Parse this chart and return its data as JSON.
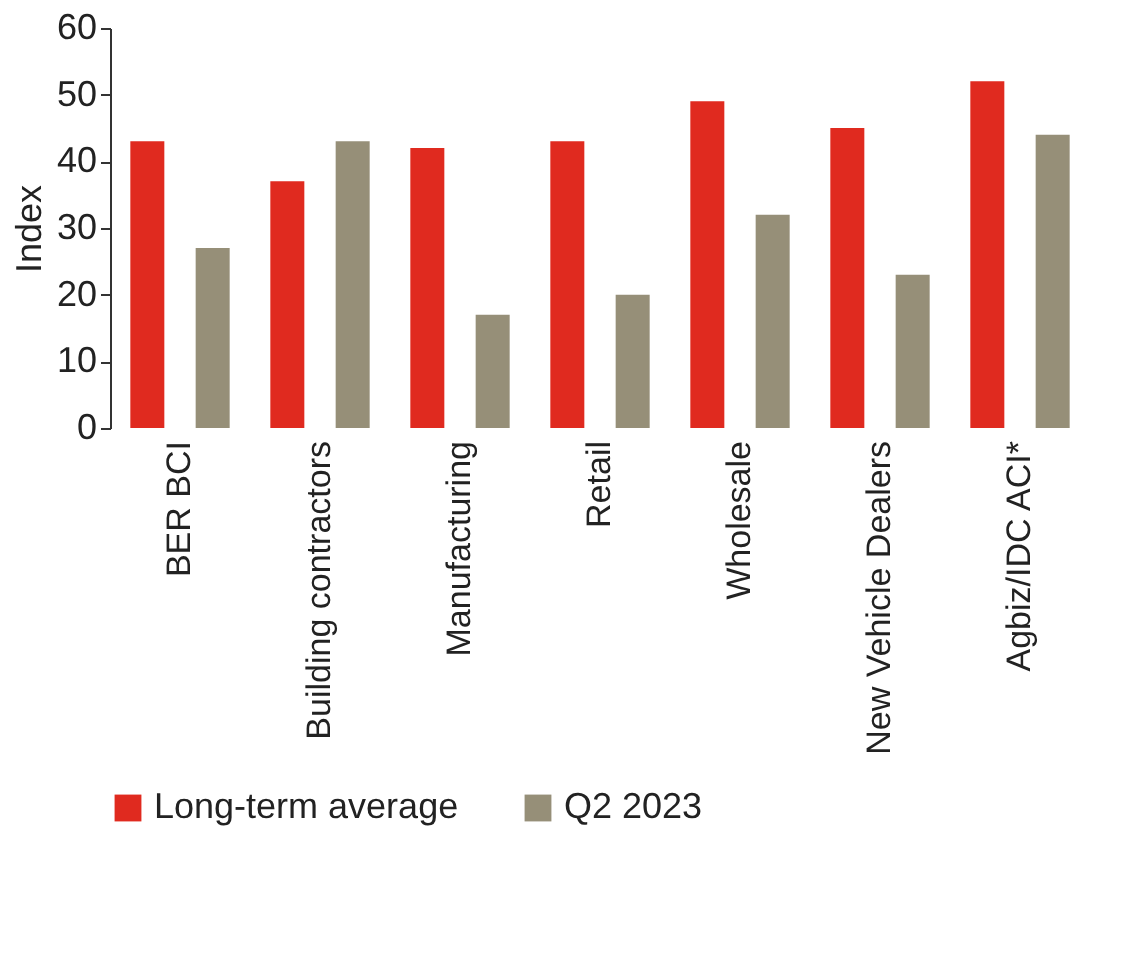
{
  "chart_data": {
    "type": "bar",
    "ylabel": "Index",
    "categories": [
      "BER BCI",
      "Building contractors",
      "Manufacturing",
      "Retail",
      "Wholesale",
      "New Vehicle Dealers",
      "Agbiz/IDC ACI*"
    ],
    "series": [
      {
        "name": "Long-term average",
        "color": "#e02a1f",
        "values": [
          43,
          37,
          42,
          43,
          49,
          45,
          52
        ]
      },
      {
        "name": "Q2 2023",
        "color": "#968f78",
        "values": [
          27,
          43,
          17,
          20,
          32,
          23,
          44
        ]
      }
    ],
    "ylim": [
      0,
      60
    ],
    "yticks": [
      0,
      10,
      20,
      30,
      40,
      50,
      60
    ],
    "grid": false,
    "legend": "bottom"
  }
}
